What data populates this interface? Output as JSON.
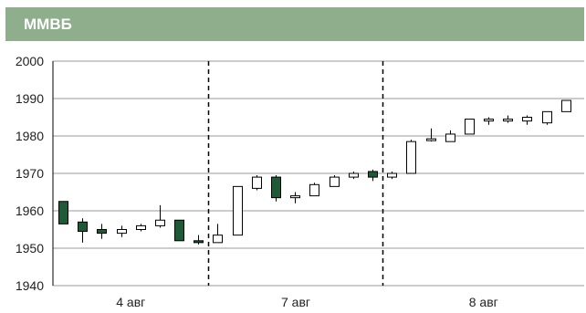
{
  "header": {
    "title": "ММВБ"
  },
  "colors": {
    "header_bg": "#8eae8c",
    "down_candle": "#1f5a37",
    "up_candle": "#ffffff",
    "grid": "#999999",
    "axis": "#000000"
  },
  "chart_data": {
    "type": "candlestick",
    "title": "ММВБ",
    "ylim": [
      1940,
      2000
    ],
    "yticks": [
      1940,
      1950,
      1960,
      1970,
      1980,
      1990,
      2000
    ],
    "grid": true,
    "day_labels": [
      "4 авг",
      "7 авг",
      "8 авг"
    ],
    "separators_after_index": [
      7,
      16
    ],
    "candles": [
      {
        "day": "4 авг",
        "open": 1962.5,
        "high": 1962.5,
        "low": 1956.5,
        "close": 1956.5
      },
      {
        "day": "4 авг",
        "open": 1957.0,
        "high": 1958.0,
        "low": 1951.5,
        "close": 1954.5
      },
      {
        "day": "4 авг",
        "open": 1955.0,
        "high": 1956.5,
        "low": 1952.5,
        "close": 1954.0
      },
      {
        "day": "4 авг",
        "open": 1954.0,
        "high": 1956.0,
        "low": 1953.0,
        "close": 1955.0
      },
      {
        "day": "4 авг",
        "open": 1955.0,
        "high": 1956.5,
        "low": 1954.5,
        "close": 1956.0
      },
      {
        "day": "4 авг",
        "open": 1956.0,
        "high": 1961.5,
        "low": 1955.5,
        "close": 1957.5
      },
      {
        "day": "4 авг",
        "open": 1957.5,
        "high": 1957.5,
        "low": 1952.0,
        "close": 1952.0
      },
      {
        "day": "4 авг",
        "open": 1952.0,
        "high": 1953.5,
        "low": 1951.0,
        "close": 1951.5
      },
      {
        "day": "4 авг",
        "open": 1951.5,
        "high": 1956.5,
        "low": 1951.5,
        "close": 1953.5
      },
      {
        "day": "7 авг",
        "open": 1953.5,
        "high": 1966.5,
        "low": 1953.5,
        "close": 1966.5
      },
      {
        "day": "7 авг",
        "open": 1966.0,
        "high": 1969.5,
        "low": 1965.5,
        "close": 1969.0
      },
      {
        "day": "7 авг",
        "open": 1969.0,
        "high": 1969.5,
        "low": 1962.5,
        "close": 1963.5
      },
      {
        "day": "7 авг",
        "open": 1963.5,
        "high": 1965.0,
        "low": 1962.0,
        "close": 1964.0
      },
      {
        "day": "7 авг",
        "open": 1964.0,
        "high": 1967.5,
        "low": 1964.0,
        "close": 1967.0
      },
      {
        "day": "7 авг",
        "open": 1966.5,
        "high": 1969.5,
        "low": 1966.5,
        "close": 1969.0
      },
      {
        "day": "7 авг",
        "open": 1969.0,
        "high": 1970.5,
        "low": 1968.5,
        "close": 1970.0
      },
      {
        "day": "7 авг",
        "open": 1970.5,
        "high": 1971.0,
        "low": 1968.0,
        "close": 1969.0
      },
      {
        "day": "7 авг",
        "open": 1969.0,
        "high": 1970.5,
        "low": 1968.5,
        "close": 1970.0
      },
      {
        "day": "8 авг",
        "open": 1970.0,
        "high": 1979.0,
        "low": 1970.0,
        "close": 1978.5
      },
      {
        "day": "8 авг",
        "open": 1979.0,
        "high": 1982.0,
        "low": 1978.5,
        "close": 1979.0
      },
      {
        "day": "8 авг",
        "open": 1978.5,
        "high": 1981.5,
        "low": 1978.5,
        "close": 1980.5
      },
      {
        "day": "8 авг",
        "open": 1980.5,
        "high": 1984.5,
        "low": 1980.5,
        "close": 1984.5
      },
      {
        "day": "8 авг",
        "open": 1984.0,
        "high": 1985.0,
        "low": 1983.0,
        "close": 1984.5
      },
      {
        "day": "8 авг",
        "open": 1984.0,
        "high": 1985.5,
        "low": 1983.5,
        "close": 1984.5
      },
      {
        "day": "8 авг",
        "open": 1984.0,
        "high": 1985.5,
        "low": 1983.0,
        "close": 1985.0
      },
      {
        "day": "8 авг",
        "open": 1983.5,
        "high": 1986.5,
        "low": 1983.0,
        "close": 1986.5
      },
      {
        "day": "8 авг",
        "open": 1986.5,
        "high": 1989.5,
        "low": 1986.5,
        "close": 1989.5
      }
    ]
  }
}
